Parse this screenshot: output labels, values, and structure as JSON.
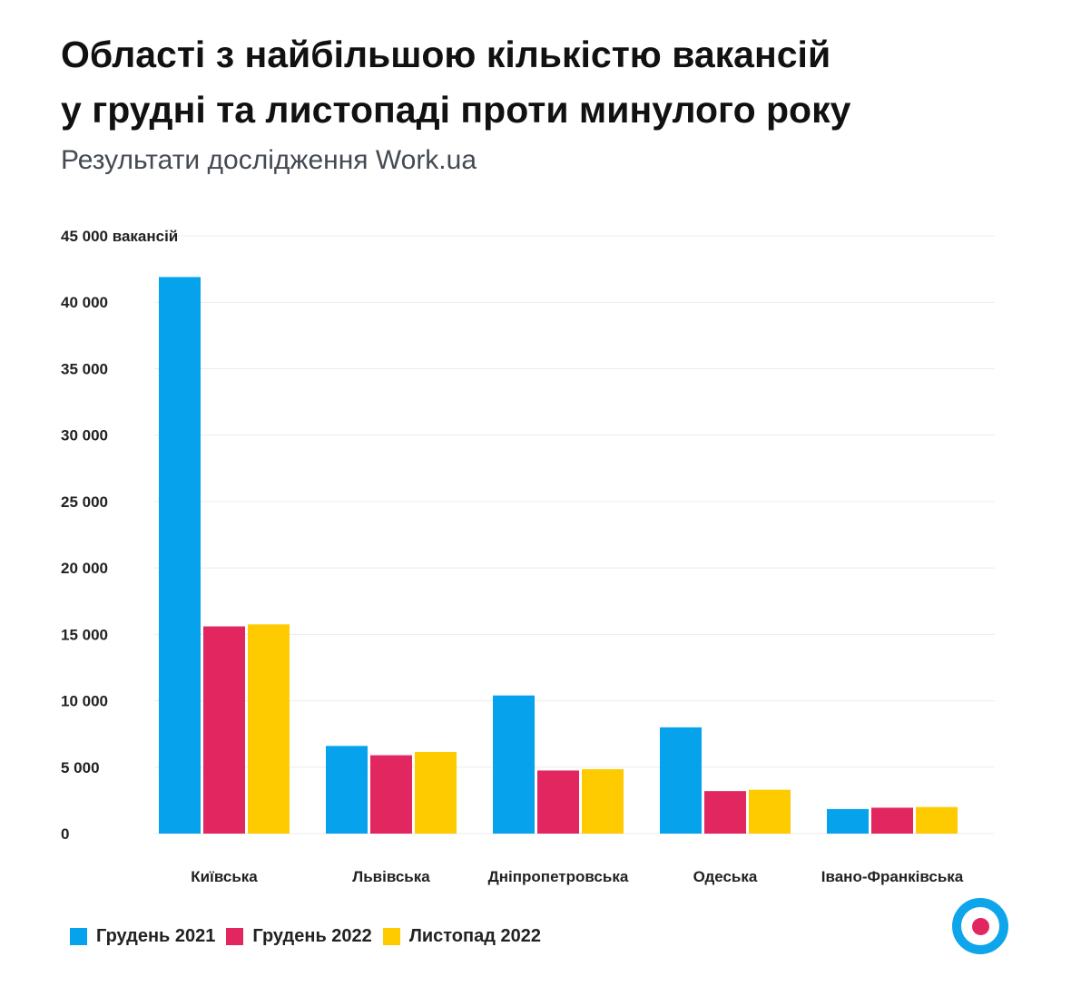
{
  "chart_data": {
    "type": "bar",
    "title": "Області з найбільшою кількістю вакансій у грудні та листопаді проти минулого року",
    "title_lines": [
      "Області з найбільшою кількістю вакансій",
      "у грудні та листопаді проти минулого року"
    ],
    "subtitle": "Результати дослідження Work.ua",
    "categories": [
      "Київська",
      "Львівська",
      "Дніпропетровська",
      "Одеська",
      "Івано-Франківська"
    ],
    "series": [
      {
        "name": "Грудень 2021",
        "color": "#07a2ec",
        "values": [
          41900,
          6600,
          10400,
          8000,
          1850
        ]
      },
      {
        "name": "Грудень 2022",
        "color": "#e2265f",
        "values": [
          15600,
          5900,
          4750,
          3200,
          1950
        ]
      },
      {
        "name": "Листопад 2022",
        "color": "#fecb00",
        "values": [
          15750,
          6150,
          4850,
          3300,
          2000
        ]
      }
    ],
    "ylim": [
      0,
      45000
    ],
    "yticks": [
      0,
      5000,
      10000,
      15000,
      20000,
      25000,
      30000,
      35000,
      40000,
      45000
    ],
    "ytick_labels": [
      "0",
      "5 000",
      "10 000",
      "15 000",
      "20 000",
      "25 000",
      "30 000",
      "35 000",
      "40 000",
      "45 000 вакансій"
    ],
    "grid": true,
    "legend_position": "bottom-left"
  },
  "logo": {
    "name": "work-ua-logo-icon",
    "ring_color": "#0ea5ea",
    "dot_color": "#e2265f"
  }
}
